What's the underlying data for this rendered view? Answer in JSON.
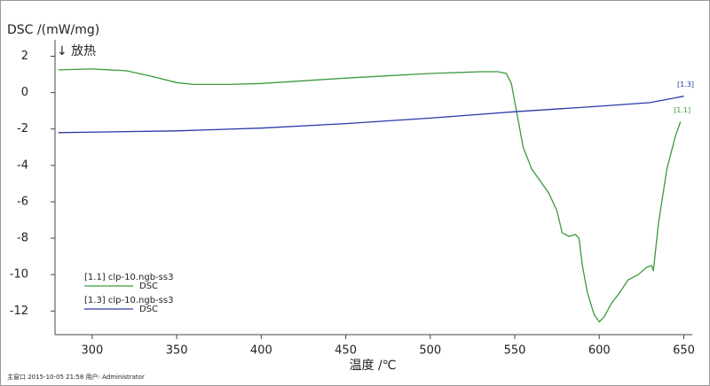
{
  "chart_data": {
    "type": "line",
    "y_label": "DSC /(mW/mg)",
    "annotation": "↓ 放热",
    "x_label": "温度 /℃",
    "footer": "主窗口   2015-10-05 21:58   用户: Administrator",
    "xlim": [
      278,
      655
    ],
    "xticks": [
      300,
      350,
      400,
      450,
      500,
      550,
      600,
      650
    ],
    "ylim": [
      -13.3,
      2.9
    ],
    "yticks": [
      2,
      0,
      -2,
      -4,
      -6,
      -8,
      -10,
      -12
    ],
    "series": [
      {
        "name": "[1.1] clp-10.ngb-ss3",
        "legend_label": "DSC",
        "end_label": "[1.1]",
        "color": "#3a9a3a",
        "x": [
          280,
          300,
          320,
          335,
          350,
          360,
          380,
          400,
          450,
          500,
          530,
          540,
          545,
          548,
          550,
          553,
          555,
          560,
          570,
          575,
          578,
          582,
          586,
          588,
          590,
          593,
          597,
          600,
          603,
          607,
          612,
          617,
          623,
          628,
          631,
          632,
          635,
          640,
          645,
          648
        ],
        "values": [
          1.25,
          1.3,
          1.2,
          0.9,
          0.55,
          0.45,
          0.45,
          0.5,
          0.8,
          1.05,
          1.15,
          1.15,
          1.05,
          0.5,
          -0.5,
          -2,
          -3,
          -4.2,
          -5.5,
          -6.5,
          -7.7,
          -7.9,
          -7.8,
          -8,
          -9.5,
          -11,
          -12.2,
          -12.6,
          -12.3,
          -11.6,
          -11.0,
          -10.3,
          -10.0,
          -9.6,
          -9.5,
          -9.8,
          -7.2,
          -4.2,
          -2.4,
          -1.6
        ]
      },
      {
        "name": "[1.3] clp-10.ngb-ss3",
        "legend_label": "DSC",
        "end_label": "[1.3]",
        "color": "#2a3aa8",
        "x": [
          280,
          350,
          400,
          450,
          500,
          550,
          600,
          630,
          650
        ],
        "values": [
          -2.2,
          -2.1,
          -1.95,
          -1.7,
          -1.4,
          -1.05,
          -0.75,
          -0.55,
          -0.2
        ]
      }
    ]
  }
}
